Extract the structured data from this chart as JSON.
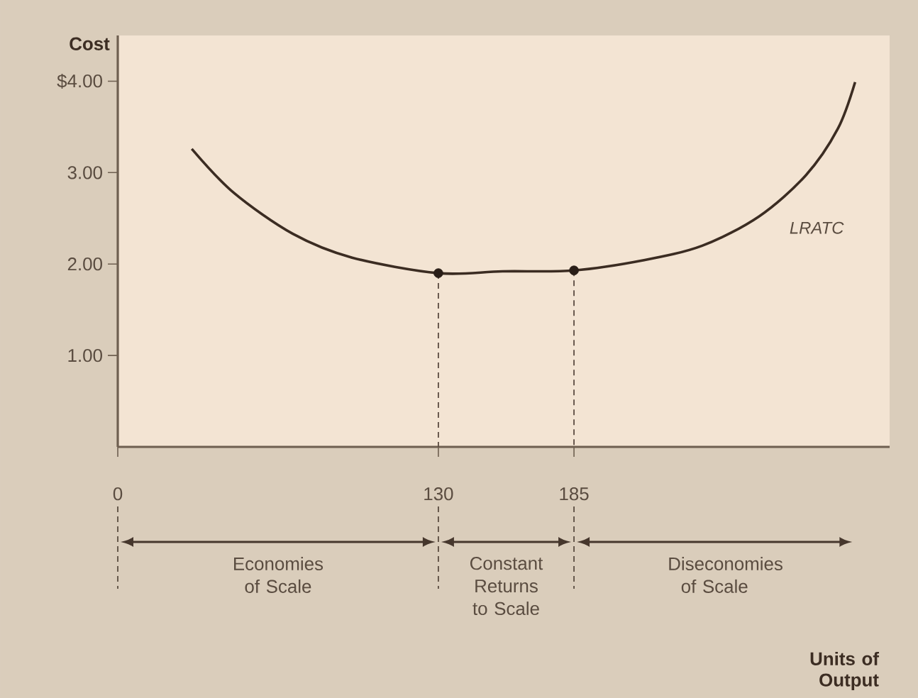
{
  "chart_data": {
    "type": "line",
    "ylabel": "Cost",
    "xlim": [
      0,
      313
    ],
    "ylim": [
      0,
      4.5
    ],
    "xticks": [
      0,
      130,
      185
    ],
    "yticks": [
      {
        "value": 1,
        "label": "1.00"
      },
      {
        "value": 2,
        "label": "2.00"
      },
      {
        "value": 3,
        "label": "3.00"
      },
      {
        "value": 4,
        "label": "$4.00"
      }
    ],
    "series": [
      {
        "name": "LRATC",
        "color": "#3b2c22",
        "marker": "none",
        "x": [
          30,
          47,
          71,
          95,
          130,
          156,
          185,
          213,
          237,
          260,
          279,
          292,
          299
        ],
        "values": [
          3.26,
          2.78,
          2.33,
          2.07,
          1.9,
          1.92,
          1.93,
          2.04,
          2.2,
          2.52,
          2.97,
          3.48,
          3.99
        ]
      },
      {
        "type": "scatter",
        "color": "#2a1e18",
        "marker": "circle",
        "x": [
          130,
          185
        ],
        "values": [
          1.9,
          1.93
        ]
      }
    ],
    "ref_lines": [
      {
        "axis": "x",
        "value": 130,
        "line_style": "dashed",
        "color": "#5a4a40"
      },
      {
        "axis": "x",
        "value": 185,
        "line_style": "dashed",
        "color": "#5a4a40"
      }
    ],
    "annotations": [
      "Economies of Scale",
      "Constant Returns to Scale",
      "Diseconomies of Scale",
      "Units of Output"
    ]
  }
}
